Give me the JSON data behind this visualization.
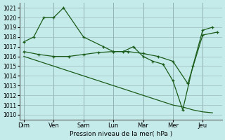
{
  "title": "",
  "xlabel": "Pression niveau de la mer( hPa )",
  "ylabel": "",
  "background_color": "#c5eaea",
  "grid_color": "#9bbcbc",
  "line_color": "#1a5c1a",
  "ylim": [
    1009.5,
    1021.5
  ],
  "yticks": [
    1010,
    1011,
    1012,
    1013,
    1014,
    1015,
    1016,
    1017,
    1018,
    1019,
    1020,
    1021
  ],
  "days": [
    "Dim",
    "Ven",
    "Sam",
    "Lun",
    "Mar",
    "Mer",
    "Jeu"
  ],
  "day_x": [
    0,
    1,
    2,
    3,
    4,
    5,
    6
  ],
  "line1_x": [
    0,
    0.33,
    0.67,
    1.0,
    1.33,
    2.0,
    2.67,
    3.0,
    3.33,
    3.67,
    4.0,
    4.33,
    4.67,
    5.0,
    5.33,
    5.67,
    6.0,
    6.33
  ],
  "line1_y": [
    1017.5,
    1018.0,
    1020.0,
    1020.0,
    1021.0,
    1018.0,
    1017.0,
    1016.5,
    1016.5,
    1017.0,
    1016.0,
    1015.5,
    1015.2,
    1013.5,
    1010.5,
    1015.0,
    1018.7,
    1019.0
  ],
  "line2_x": [
    0,
    0.5,
    1.0,
    1.5,
    2.0,
    2.5,
    3.0,
    3.5,
    4.0,
    4.5,
    5.0,
    5.5,
    6.0,
    6.5
  ],
  "line2_y": [
    1016.5,
    1016.2,
    1016.0,
    1016.0,
    1016.2,
    1016.4,
    1016.5,
    1016.5,
    1016.3,
    1016.0,
    1015.5,
    1013.2,
    1018.2,
    1018.5
  ],
  "line3_x": [
    0,
    0.5,
    1.0,
    1.5,
    2.0,
    2.5,
    3.0,
    3.5,
    4.0,
    4.5,
    5.0,
    5.33,
    5.67,
    6.0,
    6.33
  ],
  "line3_y": [
    1016.0,
    1015.5,
    1015.0,
    1014.5,
    1014.0,
    1013.5,
    1013.0,
    1012.5,
    1012.0,
    1011.5,
    1011.0,
    1010.8,
    1010.5,
    1010.3,
    1010.2
  ],
  "xlim": [
    -0.15,
    6.65
  ]
}
